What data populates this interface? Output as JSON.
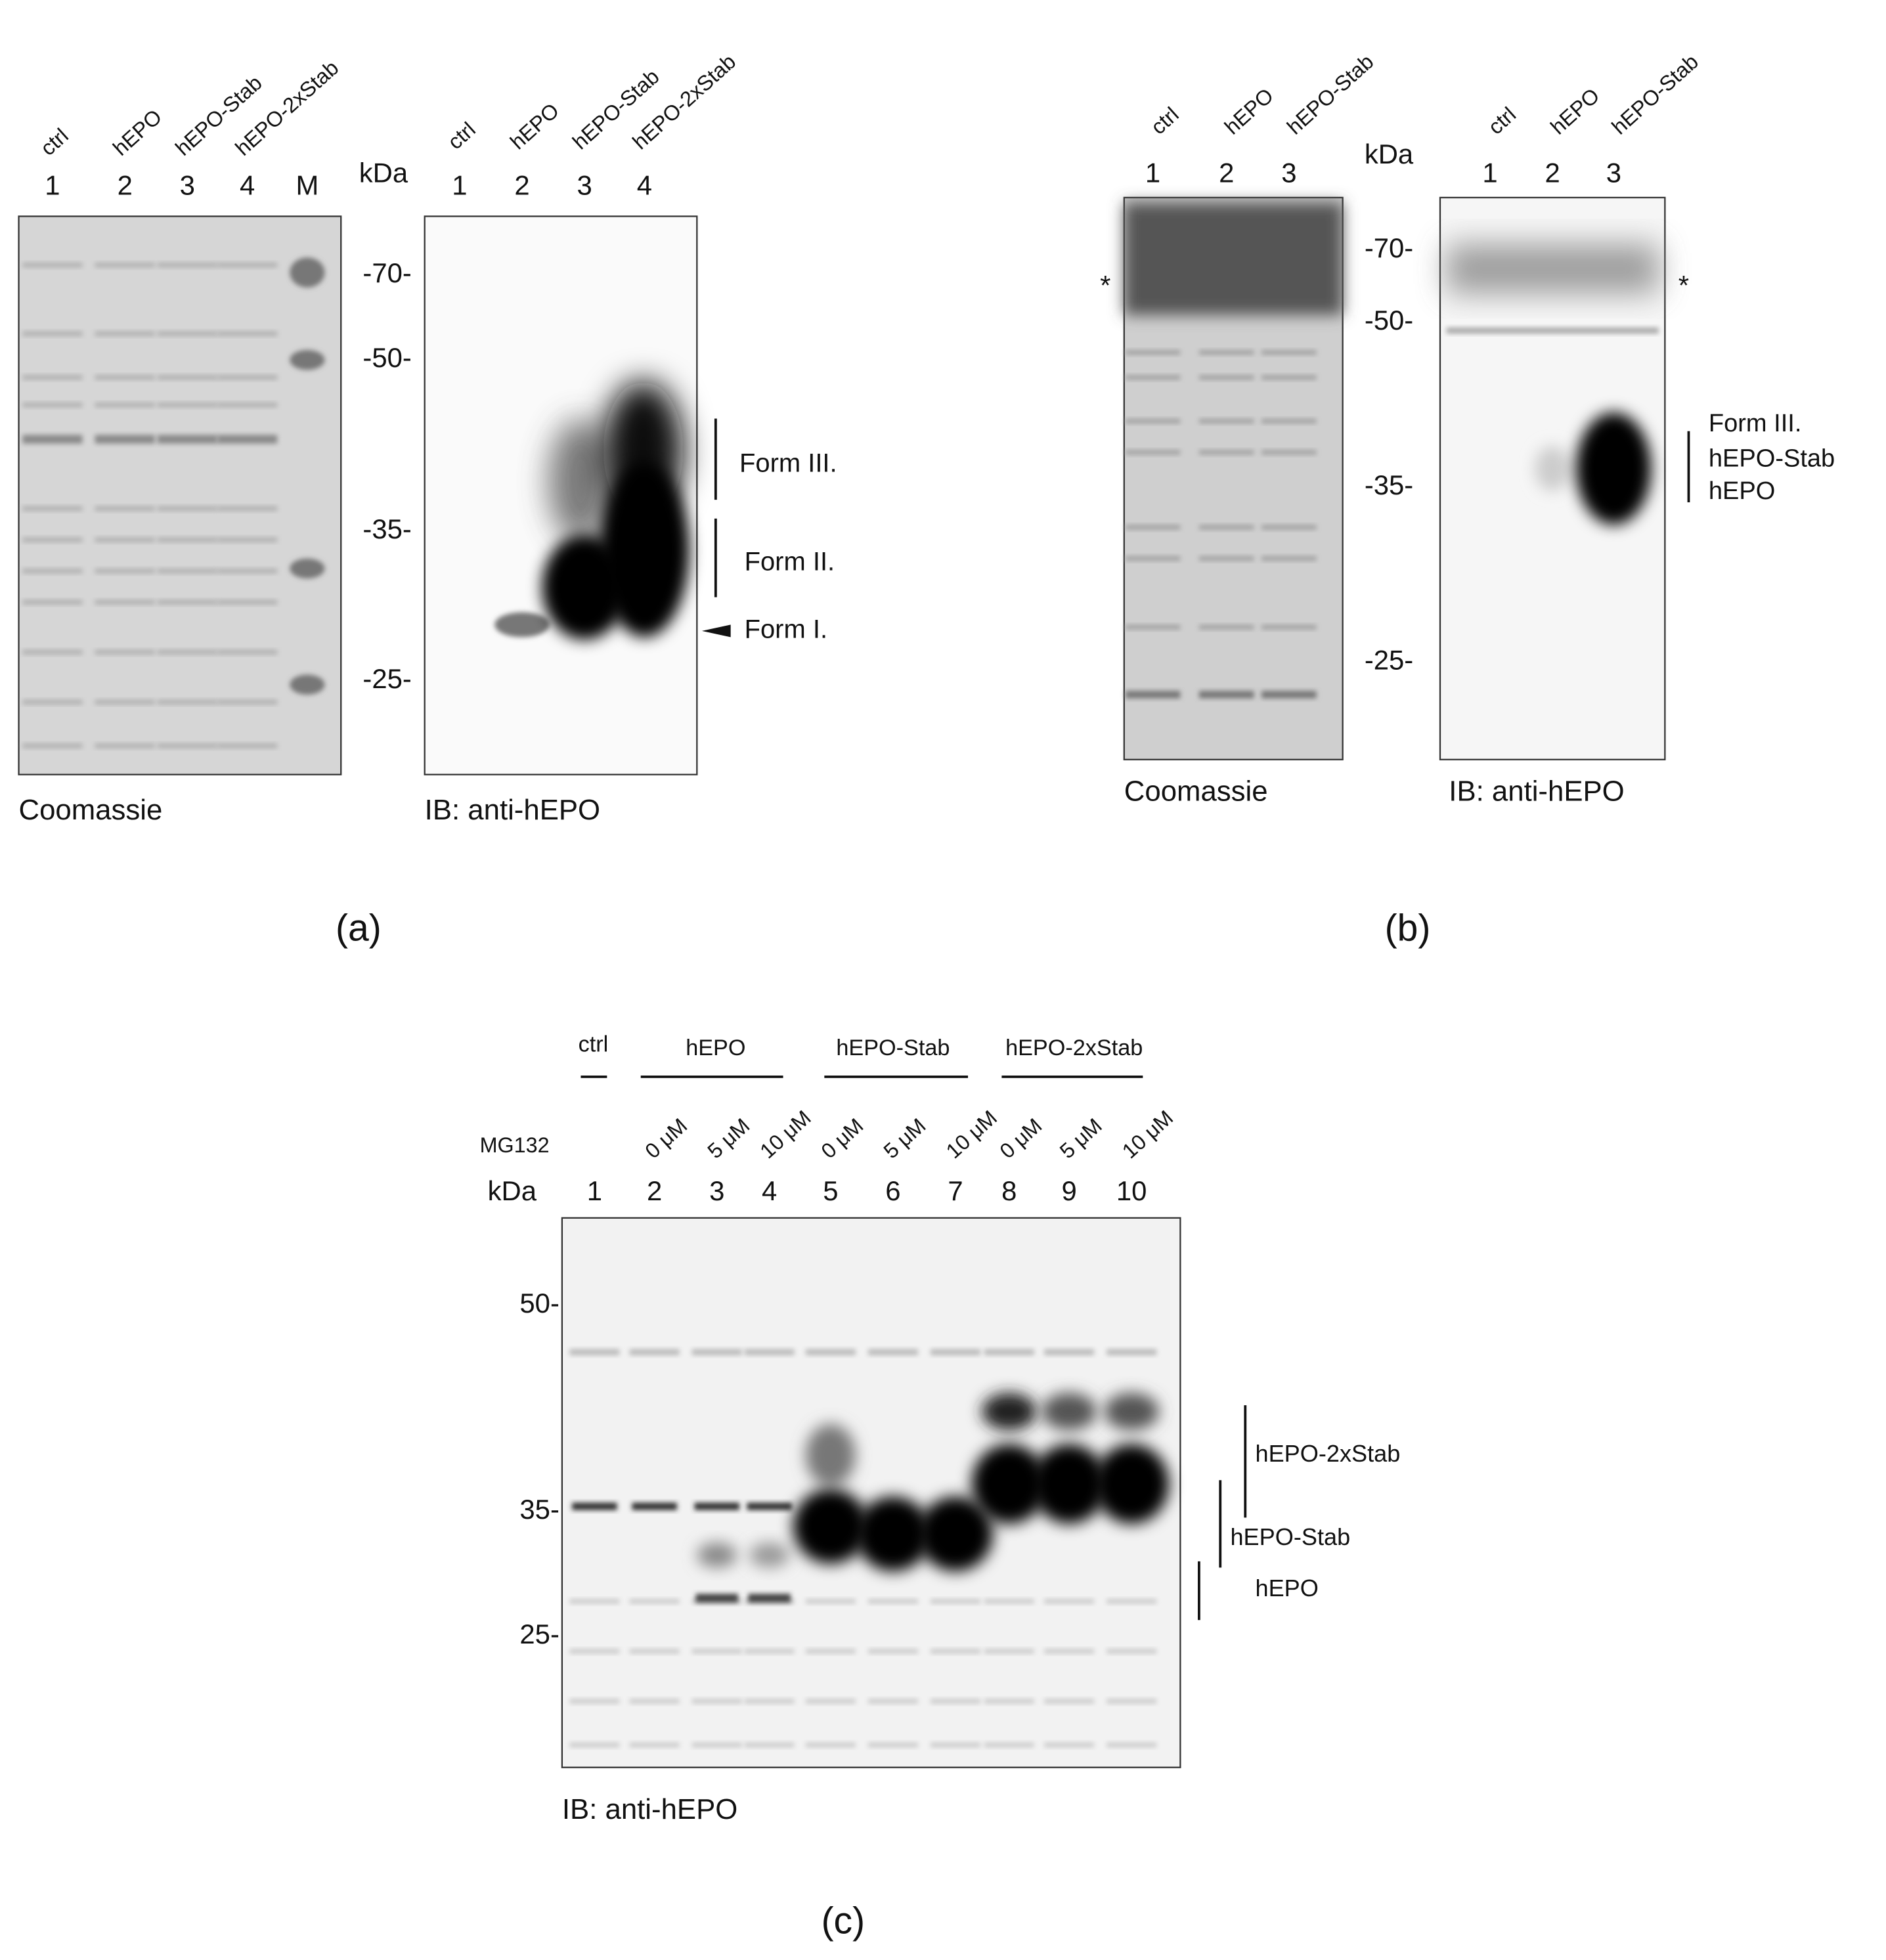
{
  "panel_a": {
    "coomassie": {
      "lanes": [
        "ctrl",
        "hEPO",
        "hEPO-Stab",
        "hEPO-2xStab"
      ],
      "lane_numbers": [
        "1",
        "2",
        "3",
        "4",
        "M"
      ],
      "caption": "Coomassie"
    },
    "marker_unit": "kDa",
    "markers": [
      "-70-",
      "-50-",
      "-35-",
      "-25-"
    ],
    "western": {
      "lanes": [
        "ctrl",
        "hEPO",
        "hEPO-Stab",
        "hEPO-2xStab"
      ],
      "lane_numbers": [
        "1",
        "2",
        "3",
        "4"
      ],
      "caption": "IB: anti-hEPO"
    },
    "annotations": [
      "Form III.",
      "Form II.",
      "Form I."
    ],
    "label": "(a)"
  },
  "panel_b": {
    "coomassie": {
      "lanes": [
        "ctrl",
        "hEPO",
        "hEPO-Stab"
      ],
      "lane_numbers": [
        "1",
        "2",
        "3"
      ],
      "caption": "Coomassie"
    },
    "marker_unit": "kDa",
    "markers": [
      "-70-",
      "-50-",
      "-35-",
      "-25-"
    ],
    "asterisks": [
      "*",
      "*"
    ],
    "western": {
      "lanes": [
        "ctrl",
        "hEPO",
        "hEPO-Stab"
      ],
      "lane_numbers": [
        "1",
        "2",
        "3"
      ],
      "caption": "IB: anti-hEPO"
    },
    "annotations": [
      "Form III.",
      "hEPO-Stab",
      "hEPO"
    ],
    "label": "(b)"
  },
  "panel_c": {
    "groups": [
      "ctrl",
      "hEPO",
      "hEPO-Stab",
      "hEPO-2xStab"
    ],
    "treatment": "MG132",
    "marker_unit": "kDa",
    "doses": [
      null,
      "0 μM",
      "5 μM",
      "10 μM",
      "0 μM",
      "5 μM",
      "10 μM",
      "0 μM",
      "5 μM",
      "10 μM"
    ],
    "lane_numbers": [
      "1",
      "2",
      "3",
      "4",
      "5",
      "6",
      "7",
      "8",
      "9",
      "10"
    ],
    "markers": [
      "50-",
      "35-",
      "25-"
    ],
    "annotations": [
      "hEPO-2xStab",
      "hEPO-Stab",
      "hEPO"
    ],
    "caption": "IB: anti-hEPO",
    "label": "(c)"
  }
}
